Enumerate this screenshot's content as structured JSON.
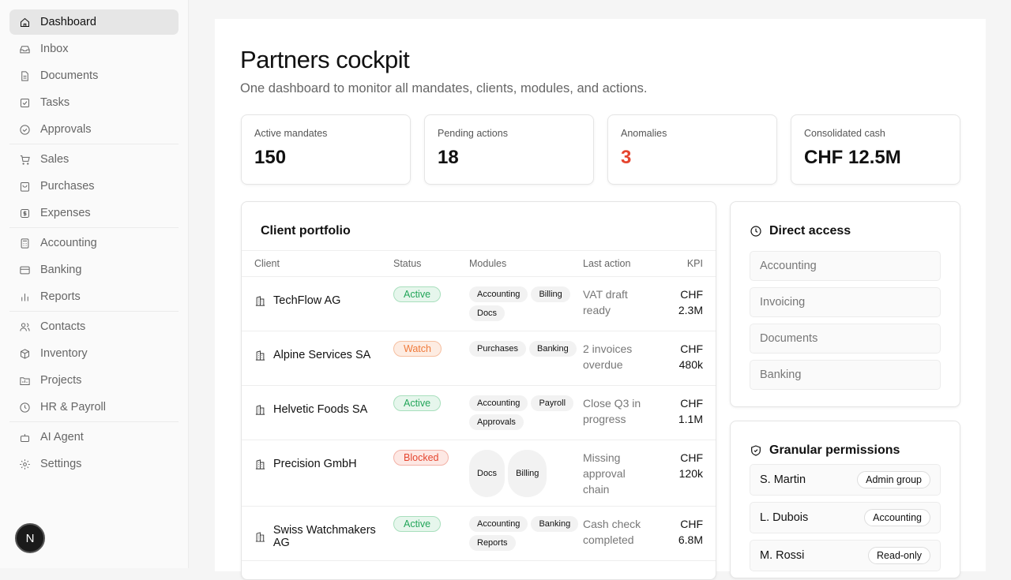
{
  "sidebar": {
    "items": [
      {
        "label": "Dashboard",
        "icon": "home-icon",
        "active": true
      },
      {
        "label": "Inbox",
        "icon": "inbox-icon"
      },
      {
        "label": "Documents",
        "icon": "document-icon"
      },
      {
        "label": "Tasks",
        "icon": "task-icon"
      },
      {
        "label": "Approvals",
        "icon": "check-circle-icon"
      },
      {
        "label": "Sales",
        "icon": "cart-icon"
      },
      {
        "label": "Purchases",
        "icon": "bag-icon"
      },
      {
        "label": "Expenses",
        "icon": "dollar-icon"
      },
      {
        "label": "Accounting",
        "icon": "calculator-icon"
      },
      {
        "label": "Banking",
        "icon": "card-icon"
      },
      {
        "label": "Reports",
        "icon": "bar-chart-icon"
      },
      {
        "label": "Contacts",
        "icon": "users-icon"
      },
      {
        "label": "Inventory",
        "icon": "box-icon"
      },
      {
        "label": "Projects",
        "icon": "folder-icon"
      },
      {
        "label": "HR & Payroll",
        "icon": "clock-icon"
      },
      {
        "label": "AI Agent",
        "icon": "bot-icon"
      },
      {
        "label": "Settings",
        "icon": "gear-icon"
      }
    ],
    "avatar": "N"
  },
  "header": {
    "title": "Partners cockpit",
    "subtitle": "One dashboard to monitor all mandates, clients, modules, and actions."
  },
  "stats": [
    {
      "label": "Active mandates",
      "value": "150"
    },
    {
      "label": "Pending actions",
      "value": "18"
    },
    {
      "label": "Anomalies",
      "value": "3",
      "color": "#e5452f"
    },
    {
      "label": "Consolidated cash",
      "value": "CHF 12.5M"
    }
  ],
  "portfolio": {
    "title": "Client portfolio",
    "columns": [
      "Client",
      "Status",
      "Modules",
      "Last action",
      "KPI"
    ],
    "rows": [
      {
        "client": "TechFlow AG",
        "status": "Active",
        "modules": [
          "Accounting",
          "Billing",
          "Docs"
        ],
        "action": "VAT draft ready",
        "kpi1": "CHF",
        "kpi2": "2.3M"
      },
      {
        "client": "Alpine Services SA",
        "status": "Watch",
        "modules": [
          "Purchases",
          "Banking"
        ],
        "action": "2 invoices overdue",
        "kpi1": "CHF",
        "kpi2": "480k"
      },
      {
        "client": "Helvetic Foods SA",
        "status": "Active",
        "modules": [
          "Accounting",
          "Payroll",
          "Approvals"
        ],
        "action": "Close Q3 in progress",
        "kpi1": "CHF",
        "kpi2": "1.1M"
      },
      {
        "client": "Precision GmbH",
        "status": "Blocked",
        "modules": [
          "Docs",
          "Billing"
        ],
        "action": "Missing approval chain",
        "kpi1": "CHF",
        "kpi2": "120k"
      },
      {
        "client": "Swiss Watchmakers AG",
        "status": "Active",
        "modules": [
          "Accounting",
          "Banking",
          "Reports"
        ],
        "action": "Cash check completed",
        "kpi1": "CHF",
        "kpi2": "6.8M"
      }
    ]
  },
  "status_colors": {
    "Active": "#22a559",
    "Watch": "#f07a3a",
    "Blocked": "#e5452f"
  },
  "direct_access": {
    "title": "Direct access",
    "items": [
      "Accounting",
      "Invoicing",
      "Documents",
      "Banking"
    ]
  },
  "permissions": {
    "title": "Granular permissions",
    "items": [
      {
        "name": "S. Martin",
        "role": "Admin group"
      },
      {
        "name": "L. Dubois",
        "role": "Accounting"
      },
      {
        "name": "M. Rossi",
        "role": "Read-only"
      }
    ]
  }
}
